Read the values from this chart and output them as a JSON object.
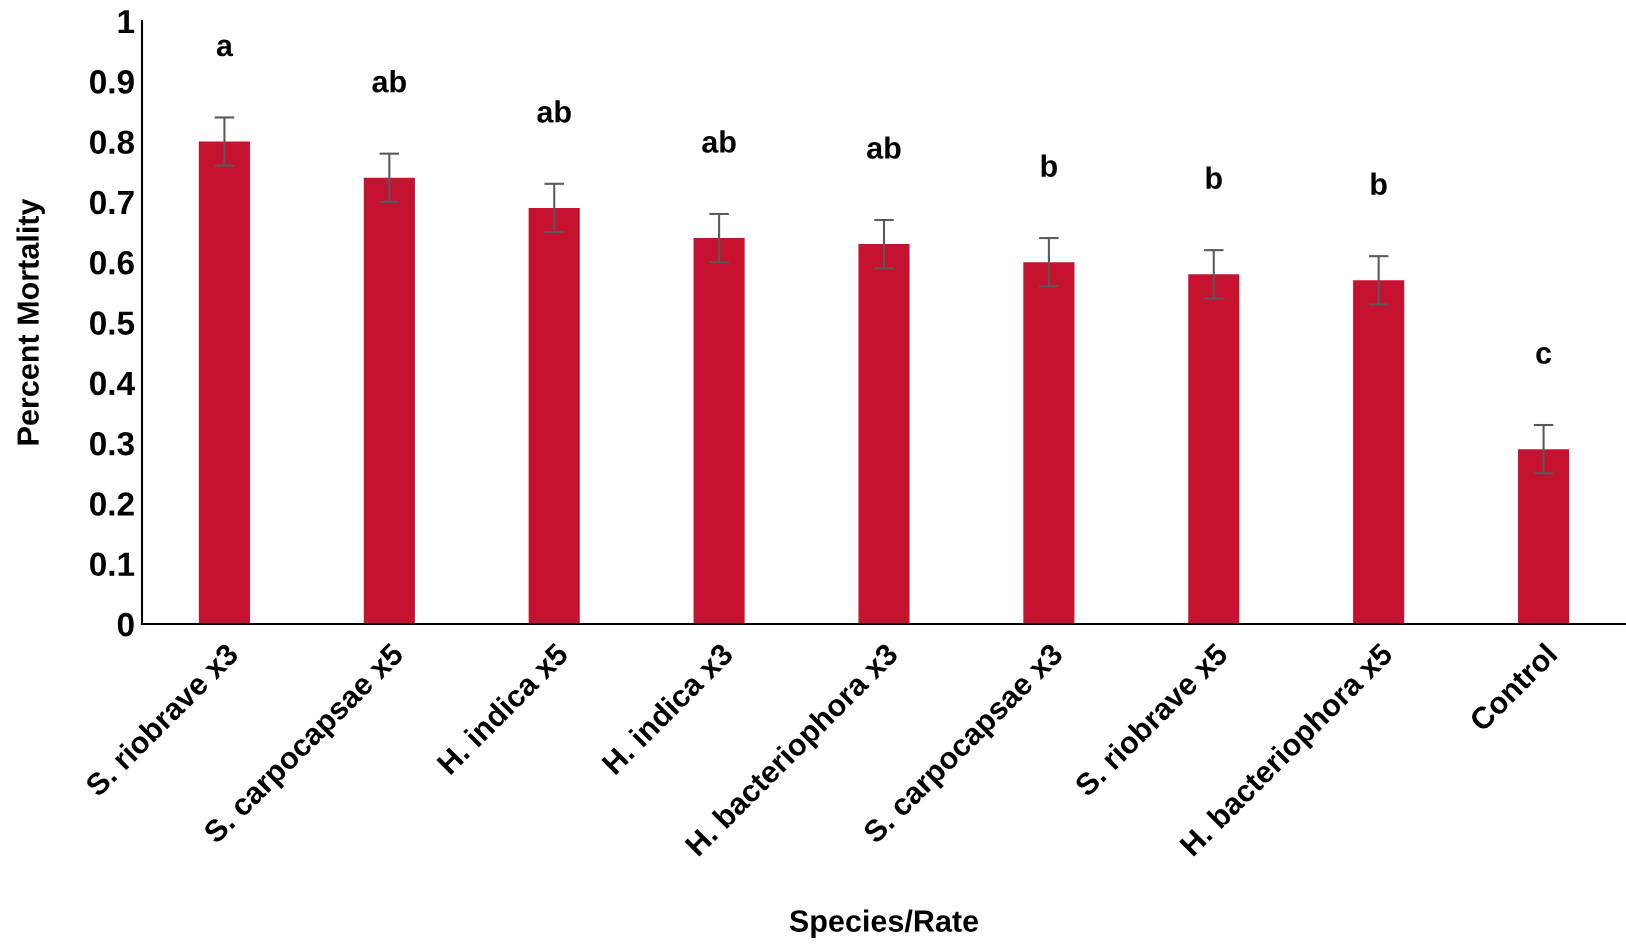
{
  "chart_data": {
    "type": "bar",
    "xlabel": "Species/Rate",
    "ylabel": "Percent Mortality",
    "categories": [
      "S. riobrave x3",
      "S. carpocapsae x5",
      "H. indica x5",
      "H. indica x3",
      "H. bacteriophora x3",
      "S. carpocapsae x3",
      "S. riobrave x5",
      "H. bacteriophora x5",
      "Control"
    ],
    "values": [
      0.8,
      0.74,
      0.69,
      0.64,
      0.63,
      0.6,
      0.58,
      0.57,
      0.29
    ],
    "errors": [
      0.04,
      0.04,
      0.04,
      0.04,
      0.04,
      0.04,
      0.04,
      0.04,
      0.04
    ],
    "color": "#c41230",
    "ylim": [
      0,
      1
    ],
    "yticks": [
      0,
      0.1,
      0.2,
      0.3,
      0.4,
      0.5,
      0.6,
      0.7,
      0.8,
      0.9,
      1
    ],
    "grid": false,
    "annotations": [
      "a",
      "ab",
      "ab",
      "ab",
      "ab",
      "b",
      "b",
      "b",
      "c"
    ]
  }
}
